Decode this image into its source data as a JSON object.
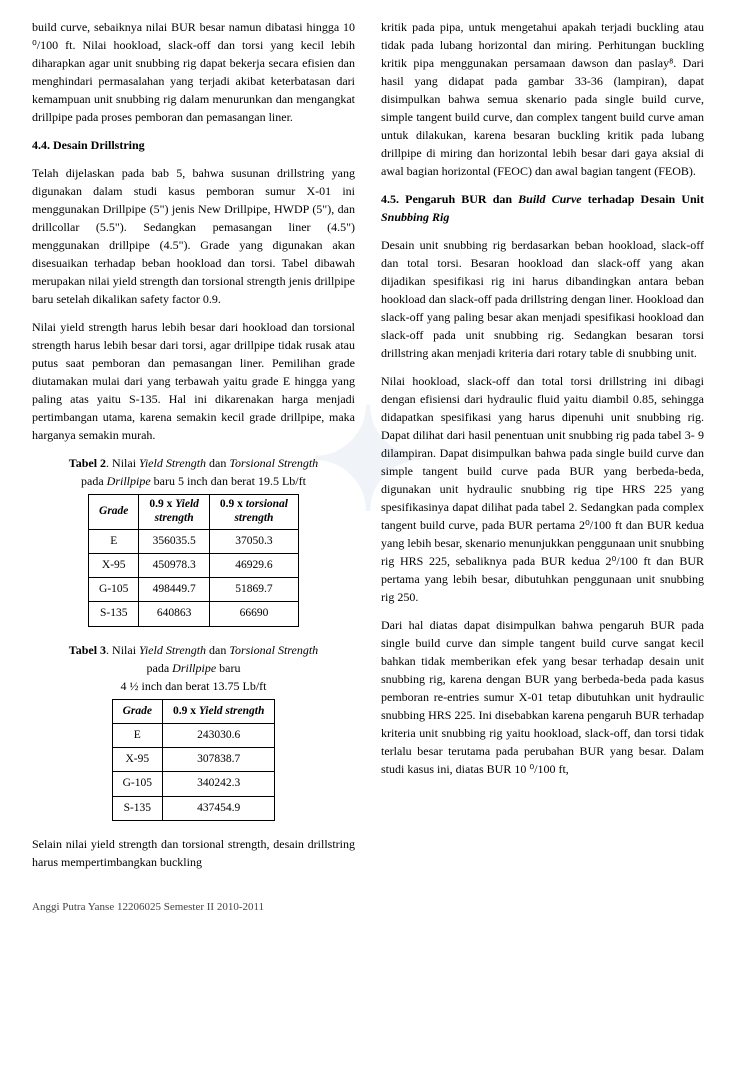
{
  "left": {
    "para1": "build curve, sebaiknya nilai BUR besar namun dibatasi hingga 10 ⁰/100 ft. Nilai hookload, slack-off dan torsi yang kecil lebih diharapkan agar unit snubbing rig dapat bekerja secara efisien dan menghindari permasalahan yang terjadi akibat keterbatasan dari kemampuan unit snubbing rig dalam menurunkan dan mengangkat drillpipe pada proses pemboran dan pemasangan liner.",
    "heading44": "4.4. Desain Drillstring",
    "para2": "Telah dijelaskan pada bab 5, bahwa susunan drillstring yang digunakan dalam studi kasus pemboran sumur X-01 ini menggunakan Drillpipe (5\") jenis New Drillpipe, HWDP (5\"), dan drillcollar (5.5\"). Sedangkan pemasangan liner (4.5\") menggunakan drillpipe (4.5\"). Grade yang digunakan akan disesuaikan terhadap beban hookload dan torsi. Tabel dibawah merupakan nilai yield strength dan torsional strength jenis drillpipe baru setelah dikalikan safety factor 0.9.",
    "para3": "Nilai yield strength harus lebih besar dari hookload dan torsional strength harus lebih besar dari torsi, agar drillpipe tidak rusak atau putus saat pemboran dan pemasangan liner. Pemilihan grade diutamakan mulai dari yang terbawah yaitu grade E hingga yang paling atas yaitu S-135. Hal ini dikarenakan harga menjadi pertimbangan utama, karena semakin kecil grade drillpipe, maka harganya semakin murah.",
    "table2": {
      "caption_l1": "Tabel 2. Nilai Yield Strength dan Torsional Strength",
      "caption_l2": "pada Drillpipe baru 5 inch dan berat 19.5 Lb/ft",
      "head_grade": "Grade",
      "head_yield_l1": "0.9 x Yield",
      "head_yield_l2": "strength",
      "head_tors_l1": "0.9 x torsional",
      "head_tors_l2": "strength",
      "r1c1": "E",
      "r1c2": "356035.5",
      "r1c3": "37050.3",
      "r2c1": "X-95",
      "r2c2": "450978.3",
      "r2c3": "46929.6",
      "r3c1": "G-105",
      "r3c2": "498449.7",
      "r3c3": "51869.7",
      "r4c1": "S-135",
      "r4c2": "640863",
      "r4c3": "66690"
    },
    "table3": {
      "caption_l1": "Tabel 3. Nilai Yield Strength dan Torsional Strength",
      "caption_l2": "pada Drillpipe baru",
      "caption_l3": "4 ½  inch dan berat 13.75 Lb/ft",
      "head_grade": "Grade",
      "head_yield": "0.9 x Yield strength",
      "r1c1": "E",
      "r1c2": "243030.6",
      "r2c1": "X-95",
      "r2c2": "307838.7",
      "r3c1": "G-105",
      "r3c2": "340242.3",
      "r4c1": "S-135",
      "r4c2": "437454.9"
    },
    "para4": "Selain nilai yield strength dan torsional strength, desain drillstring harus mempertimbangkan buckling"
  },
  "right": {
    "para1": "kritik pada pipa, untuk mengetahui apakah terjadi buckling atau tidak pada lubang horizontal dan miring. Perhitungan buckling kritik pipa menggunakan persamaan dawson dan paslay⁸. Dari hasil yang didapat pada gambar 33-36 (lampiran), dapat disimpulkan bahwa semua skenario pada single build curve, simple tangent build curve, dan complex tangent build curve aman untuk dilakukan, karena besaran buckling kritik pada lubang drillpipe di miring dan horizontal lebih besar dari gaya aksial di awal bagian horizontal (FEOC) dan awal bagian tangent (FEOB).",
    "heading45": "4.5. Pengaruh BUR dan Build Curve terhadap Desain Unit Snubbing Rig",
    "para2": "Desain unit snubbing rig berdasarkan beban hookload, slack-off dan total torsi. Besaran hookload dan slack-off yang akan dijadikan spesifikasi rig ini harus dibandingkan antara beban hookload dan slack-off pada drillstring dengan liner. Hookload dan slack-off yang paling besar akan menjadi spesifikasi hookload dan slack-off pada unit snubbing rig. Sedangkan besaran torsi drillstring akan menjadi kriteria dari rotary table di snubbing unit.",
    "para3": "Nilai hookload, slack-off dan total torsi drillstring ini dibagi dengan efisiensi dari hydraulic fluid yaitu diambil 0.85, sehingga didapatkan spesifikasi yang harus dipenuhi unit snubbing rig. Dapat dilihat dari hasil penentuan unit snubbing rig pada tabel 3- 9 dilampiran. Dapat disimpulkan bahwa pada single build curve dan simple tangent build curve pada BUR yang berbeda-beda, digunakan unit hydraulic snubbing rig tipe HRS 225 yang spesifikasinya dapat dilihat pada tabel 2. Sedangkan pada complex tangent build curve, pada BUR pertama 2⁰/100 ft dan BUR kedua yang lebih besar, skenario menunjukkan penggunaan unit snubbing rig HRS 225, sebaliknya pada BUR kedua 2⁰/100 ft dan BUR pertama yang lebih besar, dibutuhkan penggunaan unit snubbing rig 250.",
    "para4": "Dari hal diatas dapat disimpulkan bahwa pengaruh BUR pada single build curve dan simple tangent build curve sangat kecil bahkan tidak memberikan efek yang besar terhadap desain unit snubbing rig, karena dengan BUR yang berbeda-beda pada kasus pemboran re-entries sumur X-01 tetap dibutuhkan unit hydraulic snubbing HRS 225. Ini disebabkan karena pengaruh BUR terhadap kriteria unit snubbing rig yaitu hookload, slack-off, dan torsi tidak terlalu besar terutama pada perubahan BUR yang besar. Dalam studi kasus ini, diatas BUR 10 ⁰/100 ft,"
  },
  "footer": "Anggi Putra Yanse  12206025  Semester II 2010-2011"
}
